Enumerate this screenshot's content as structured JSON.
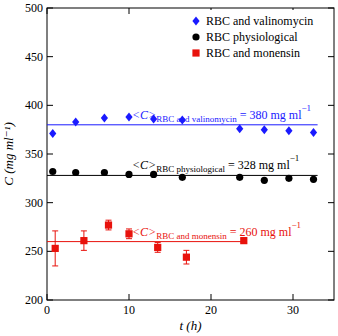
{
  "chart_data": {
    "type": "scatter",
    "x_label": "t (h)",
    "y_label": "C (mg ml⁻¹)",
    "xlim": [
      0,
      35
    ],
    "xticks": [
      0,
      10,
      20,
      30
    ],
    "ylim": [
      200,
      500
    ],
    "yticks": [
      200,
      250,
      300,
      350,
      400,
      450,
      500
    ],
    "legend": "upper right",
    "series": [
      {
        "name": "RBC and valinomycin",
        "color": "#1a1aff",
        "marker": "diamond",
        "x": [
          0.7,
          3.5,
          7,
          10,
          13,
          16.5,
          23.5,
          26.5,
          29.5,
          32.5
        ],
        "values": [
          371,
          383,
          387,
          388,
          386,
          385,
          376,
          375,
          374,
          372
        ],
        "mean": 380,
        "mean_x": [
          0,
          33
        ]
      },
      {
        "name": "RBC physiological",
        "color": "#000000",
        "marker": "circle",
        "x": [
          0.7,
          3.5,
          7,
          10,
          13,
          16.5,
          23.5,
          26.5,
          29.5,
          32.5
        ],
        "values": [
          332,
          331,
          331,
          329,
          329,
          326,
          326,
          323,
          325,
          324
        ],
        "mean": 328,
        "mean_x": [
          0,
          33
        ]
      },
      {
        "name": "RBC and monensin",
        "color": "#e8120c",
        "marker": "square",
        "x": [
          1,
          4.5,
          7.5,
          10,
          13.5,
          17,
          24
        ],
        "values": [
          253,
          261,
          277,
          268,
          254,
          244,
          261
        ],
        "errors": [
          18,
          10,
          5,
          5,
          5,
          7,
          2
        ],
        "mean": 260,
        "mean_x": [
          0,
          24
        ]
      }
    ],
    "annotations": [
      {
        "series": 0,
        "parts": [
          {
            "text": "<C>"
          },
          {
            "text": "RBC and valinomycin",
            "sub": true
          },
          {
            "text": " = 380 mg ml"
          },
          {
            "text": "−1",
            "sup": true
          }
        ]
      },
      {
        "series": 1,
        "parts": [
          {
            "text": "<C>"
          },
          {
            "text": "RBC physiological",
            "sub": true
          },
          {
            "text": " = 328 mg ml"
          },
          {
            "text": "−1",
            "sup": true
          }
        ]
      },
      {
        "series": 2,
        "parts": [
          {
            "text": "<C>"
          },
          {
            "text": "RBC and monensin",
            "sub": true
          },
          {
            "text": " = 260 mg ml"
          },
          {
            "text": "−1",
            "sup": true
          }
        ]
      }
    ]
  }
}
